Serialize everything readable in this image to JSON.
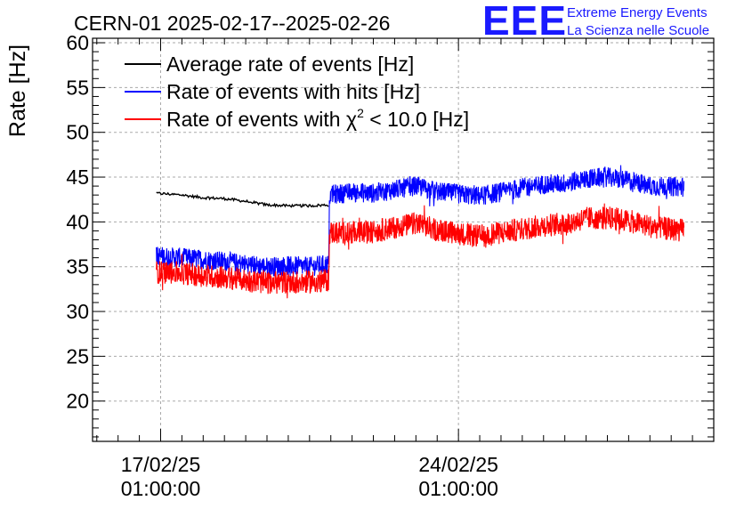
{
  "chart_data": {
    "type": "line",
    "title": "CERN-01 2025-02-17--2025-02-26",
    "ylabel": "Rate [Hz]",
    "xlabel": "",
    "ylim": [
      15.5,
      60.5
    ],
    "xlim_days_from_first_tick": [
      -1.6,
      13.0
    ],
    "yticks": [
      20,
      25,
      30,
      35,
      40,
      45,
      50,
      55,
      60
    ],
    "xticks": [
      {
        "date": "17/02/25",
        "time": "01:00:00",
        "day": 0
      },
      {
        "date": "24/02/25",
        "time": "01:00:00",
        "day": 7
      }
    ],
    "grid": true,
    "legend_position": "top-left",
    "series": [
      {
        "name": "Average rate of events [Hz]",
        "color": "#000000",
        "noise": 0.15,
        "x": [
          -0.1,
          0.5,
          1.0,
          1.5,
          2.0,
          2.5,
          3.0,
          3.5,
          3.95
        ],
        "y": [
          43.2,
          43.0,
          42.7,
          42.6,
          42.3,
          41.9,
          41.8,
          41.8,
          41.9
        ]
      },
      {
        "name": "Rate of events with hits [Hz]",
        "color": "#0000ff",
        "noise": 1.1,
        "x": [
          -0.1,
          0.5,
          1.0,
          1.5,
          2.0,
          2.5,
          3.0,
          3.5,
          3.95,
          3.97,
          4.5,
          5.0,
          5.5,
          6.0,
          6.5,
          7.0,
          7.5,
          8.0,
          8.5,
          9.0,
          9.5,
          10.0,
          10.5,
          11.0,
          11.5,
          12.3
        ],
        "y": [
          36.2,
          36.0,
          35.8,
          35.6,
          35.3,
          35.0,
          35.1,
          35.0,
          35.3,
          43.0,
          43.3,
          43.2,
          43.6,
          44.0,
          43.4,
          43.1,
          42.9,
          43.3,
          43.8,
          44.2,
          44.3,
          44.8,
          45.0,
          44.6,
          44.0,
          43.9
        ]
      },
      {
        "name": "Rate of events with χ² < 10.0 [Hz]",
        "color": "#ff0000",
        "noise": 1.3,
        "x": [
          -0.1,
          0.5,
          1.0,
          1.5,
          2.0,
          2.5,
          3.0,
          3.5,
          3.95,
          3.97,
          4.5,
          5.0,
          5.5,
          6.0,
          6.5,
          7.0,
          7.5,
          8.0,
          8.5,
          9.0,
          9.5,
          10.0,
          10.5,
          11.0,
          11.5,
          12.3
        ],
        "y": [
          34.4,
          34.3,
          34.0,
          33.8,
          33.5,
          33.2,
          33.3,
          33.3,
          33.5,
          38.8,
          38.8,
          38.9,
          39.4,
          39.8,
          39.1,
          38.7,
          38.4,
          38.8,
          39.2,
          39.6,
          39.8,
          40.4,
          40.5,
          40.1,
          39.5,
          39.0
        ]
      }
    ]
  },
  "legend": {
    "item0": "Average rate of events [Hz]",
    "item1": "Rate of events with hits [Hz]",
    "item2_prefix": "Rate of events with ",
    "item2_chi": "χ",
    "item2_sup": "2",
    "item2_suffix": " < 10.0 [Hz]"
  },
  "logo": {
    "mark": "EEE",
    "line1": "Extreme Energy Events",
    "line2": "La Scienza nelle Scuole"
  }
}
